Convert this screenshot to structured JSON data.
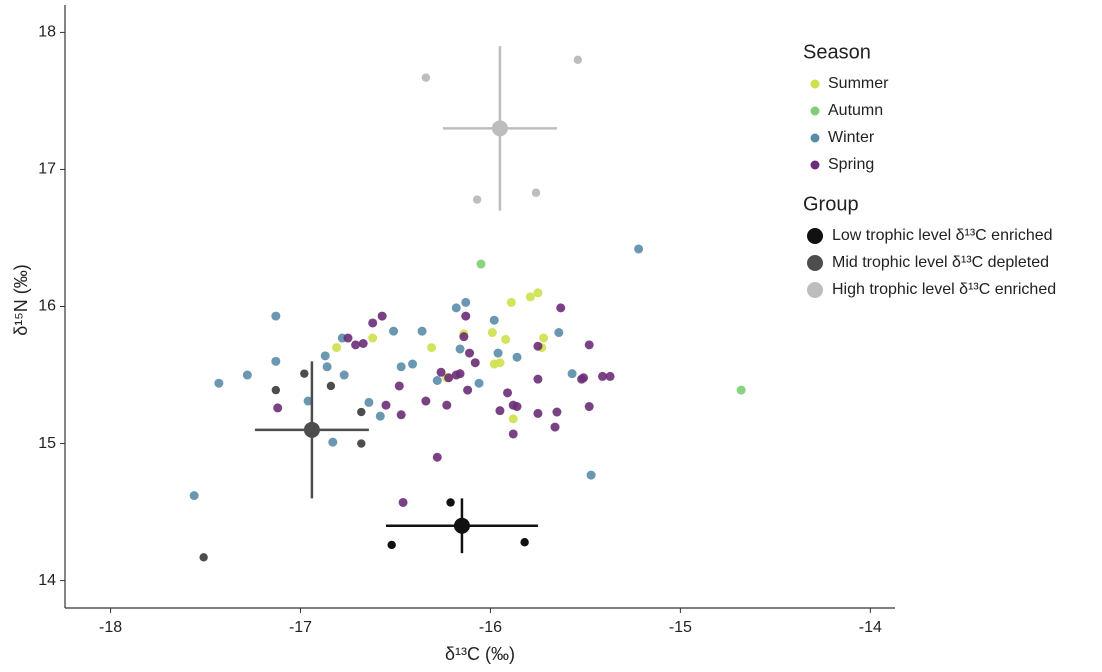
{
  "chart_data": {
    "type": "scatter",
    "xlabel": "δ¹³C (‰)",
    "ylabel": "δ¹⁵N (‰)",
    "xlim": [
      -18.24,
      -13.87
    ],
    "ylim": [
      13.8,
      18.2
    ],
    "xticks": [
      -18,
      -17,
      -16,
      -15,
      -14
    ],
    "yticks": [
      14,
      15,
      16,
      17,
      18
    ],
    "season_legend_title": "Season",
    "group_legend_title": "Group",
    "series": [
      {
        "name": "Summer",
        "color": "#cfe04a",
        "x": [
          -16.81,
          -16.31,
          -16.14,
          -15.99,
          -15.92,
          -15.89,
          -15.79,
          -15.75,
          -15.72,
          -15.73,
          -15.98,
          -15.95,
          -16.23,
          -15.88,
          -16.62
        ],
        "values": [
          15.7,
          15.7,
          15.8,
          15.81,
          15.76,
          16.03,
          16.07,
          16.1,
          15.77,
          15.7,
          15.58,
          15.59,
          15.48,
          15.18,
          15.77
        ]
      },
      {
        "name": "Autumn",
        "color": "#7ccf73",
        "x": [
          -16.05,
          -14.68
        ],
        "values": [
          16.31,
          15.39
        ]
      },
      {
        "name": "Winter",
        "color": "#5a8ca8",
        "x": [
          -17.56,
          -17.43,
          -17.28,
          -17.13,
          -17.13,
          -16.87,
          -16.86,
          -16.77,
          -16.96,
          -16.83,
          -16.78,
          -16.64,
          -16.58,
          -16.51,
          -16.47,
          -16.41,
          -16.36,
          -16.28,
          -16.18,
          -16.13,
          -16.16,
          -16.06,
          -15.96,
          -15.98,
          -15.86,
          -15.64,
          -15.57,
          -15.47,
          -15.22
        ],
        "values": [
          14.62,
          15.44,
          15.5,
          15.6,
          15.93,
          15.64,
          15.56,
          15.5,
          15.31,
          15.01,
          15.77,
          15.3,
          15.2,
          15.82,
          15.56,
          15.58,
          15.82,
          15.46,
          15.99,
          16.03,
          15.69,
          15.44,
          15.66,
          15.9,
          15.63,
          15.81,
          15.51,
          14.77,
          16.42
        ]
      },
      {
        "name": "Spring",
        "color": "#6b2d78",
        "x": [
          -17.12,
          -16.75,
          -16.71,
          -16.62,
          -16.57,
          -16.67,
          -16.55,
          -16.48,
          -16.47,
          -16.46,
          -16.34,
          -16.28,
          -16.26,
          -16.23,
          -16.22,
          -16.18,
          -16.16,
          -16.14,
          -16.11,
          -16.13,
          -16.08,
          -16.12,
          -15.95,
          -15.91,
          -15.88,
          -15.86,
          -15.88,
          -15.75,
          -15.75,
          -15.75,
          -15.66,
          -15.65,
          -15.63,
          -15.52,
          -15.48,
          -15.48,
          -15.41,
          -15.37,
          -15.51
        ],
        "values": [
          15.26,
          15.77,
          15.72,
          15.88,
          15.93,
          15.73,
          15.28,
          15.42,
          15.21,
          14.57,
          15.31,
          14.9,
          15.52,
          15.28,
          15.48,
          15.5,
          15.51,
          15.78,
          15.66,
          15.93,
          15.59,
          15.39,
          15.24,
          15.37,
          15.28,
          15.27,
          15.07,
          15.47,
          15.71,
          15.22,
          15.12,
          15.23,
          15.99,
          15.47,
          15.72,
          15.27,
          15.49,
          15.49,
          15.48
        ]
      }
    ],
    "groups": [
      {
        "name": "Low trophic level δ¹³C enriched",
        "color": "#111111",
        "x": [
          -16.52,
          -16.21,
          -15.82
        ],
        "values": [
          14.26,
          14.57,
          14.28
        ],
        "mean_x": -16.15,
        "mean_y": 14.4,
        "xerr": 0.4,
        "yerr": 0.2
      },
      {
        "name": "Mid trophic level δ¹³C depleted",
        "color": "#4d4d4d",
        "x": [
          -17.13,
          -16.98,
          -16.84,
          -16.68,
          -16.68,
          -17.51
        ],
        "values": [
          15.39,
          15.51,
          15.42,
          15.23,
          15.0,
          14.17
        ],
        "mean_x": -16.94,
        "mean_y": 15.1,
        "xerr": 0.3,
        "yerr": 0.5
      },
      {
        "name": "High trophic level δ¹³C enriched",
        "color": "#bdbdbd",
        "x": [
          -16.34,
          -15.54,
          -16.07,
          -15.76
        ],
        "values": [
          17.67,
          17.8,
          16.78,
          16.83
        ],
        "mean_x": -15.95,
        "mean_y": 17.3,
        "xerr": 0.3,
        "yerr": 0.6
      }
    ]
  }
}
